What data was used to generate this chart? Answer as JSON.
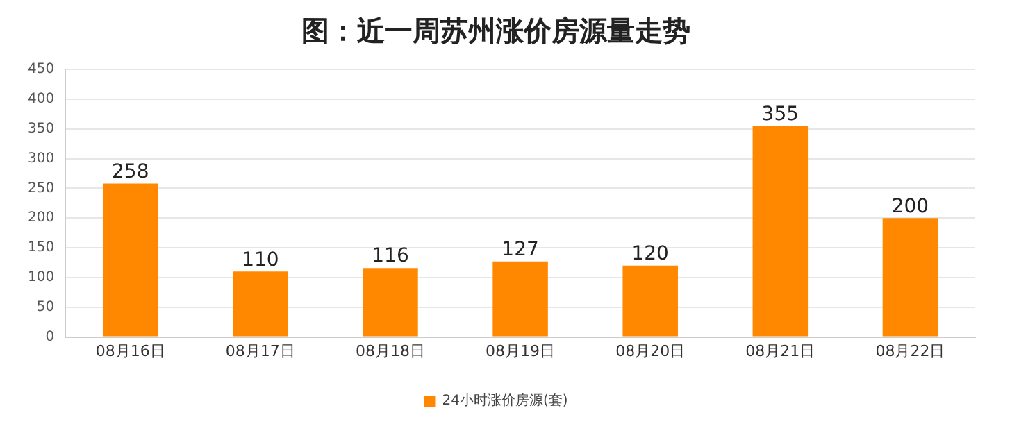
{
  "chart_data": {
    "type": "bar",
    "title": "图：近一周苏州涨价房源量走势",
    "categories": [
      "08月16日",
      "08月17日",
      "08月18日",
      "08月19日",
      "08月20日",
      "08月21日",
      "08月22日"
    ],
    "series": [
      {
        "name": "24小时涨价房源(套)",
        "color": "#ff8800",
        "values": [
          258,
          110,
          116,
          127,
          120,
          355,
          200
        ]
      }
    ],
    "ylim": [
      0,
      450
    ],
    "yticks": [
      0,
      50,
      100,
      150,
      200,
      250,
      300,
      350,
      400,
      450
    ],
    "grid": "y",
    "legend": "bottom",
    "data_labels": true
  }
}
